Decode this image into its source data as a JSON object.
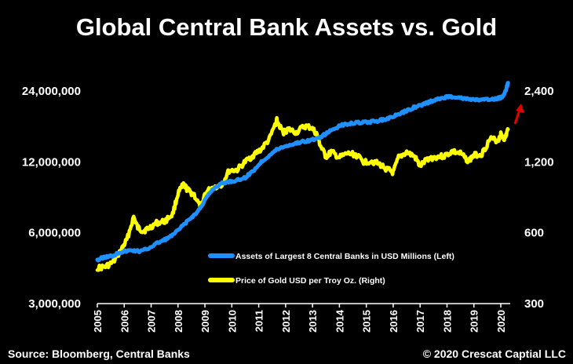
{
  "chart_data": {
    "type": "line",
    "title": "Global Central Bank Assets vs. Gold",
    "source": "Source: Bloomberg, Central Banks",
    "copyright": "© 2020 Crescat Captial LLC",
    "x_ticks": [
      "2005",
      "2006",
      "2007",
      "2008",
      "2009",
      "2010",
      "2011",
      "2012",
      "2013",
      "2014",
      "2015",
      "2016",
      "2017",
      "2018",
      "2019",
      "2020"
    ],
    "y_left": {
      "scale": "log",
      "ticks": [
        {
          "value": 3000000,
          "label": "3,000,000"
        },
        {
          "value": 6000000,
          "label": "6,000,000"
        },
        {
          "value": 12000000,
          "label": "12,000,000"
        },
        {
          "value": 24000000,
          "label": "24,000,000"
        }
      ],
      "range": [
        3000000,
        24000000
      ]
    },
    "y_right": {
      "scale": "log",
      "ticks": [
        {
          "value": 300,
          "label": "300"
        },
        {
          "value": 600,
          "label": "600"
        },
        {
          "value": 1200,
          "label": "1,200"
        },
        {
          "value": 2400,
          "label": "2,400"
        }
      ],
      "range": [
        300,
        2400
      ]
    },
    "x_range": [
      2005,
      2020.35
    ],
    "series": [
      {
        "name": "Assets of Largest 8 Central Banks in USD Millions (Left)",
        "color": "#1e90ff",
        "axis": "left",
        "x": [
          2005.0,
          2005.2,
          2005.4,
          2005.6,
          2005.8,
          2006.0,
          2006.3,
          2006.6,
          2006.9,
          2007.2,
          2007.5,
          2007.8,
          2008.1,
          2008.4,
          2008.7,
          2008.9,
          2009.1,
          2009.3,
          2009.6,
          2009.9,
          2010.2,
          2010.5,
          2010.8,
          2011.1,
          2011.4,
          2011.7,
          2012.0,
          2012.3,
          2012.6,
          2012.9,
          2013.2,
          2013.5,
          2013.8,
          2014.1,
          2014.4,
          2014.7,
          2015.0,
          2015.3,
          2015.6,
          2015.9,
          2016.2,
          2016.5,
          2016.8,
          2017.1,
          2017.4,
          2017.7,
          2018.0,
          2018.3,
          2018.6,
          2018.9,
          2019.2,
          2019.5,
          2019.8,
          2020.0,
          2020.1,
          2020.2,
          2020.27
        ],
        "values": [
          4600000,
          4700000,
          4750000,
          4800000,
          4950000,
          5000000,
          5050000,
          5000000,
          5150000,
          5400000,
          5600000,
          5850000,
          6300000,
          6800000,
          7300000,
          7900000,
          8600000,
          9200000,
          9700000,
          9900000,
          10000000,
          10300000,
          11000000,
          12000000,
          12800000,
          13600000,
          14000000,
          14300000,
          14600000,
          14800000,
          15100000,
          15800000,
          16600000,
          17200000,
          17500000,
          17600000,
          17700000,
          17800000,
          18100000,
          18500000,
          19100000,
          19800000,
          20500000,
          21000000,
          21700000,
          22200000,
          22700000,
          22700000,
          22300000,
          22100000,
          22000000,
          22000000,
          22200000,
          22500000,
          23000000,
          24500000,
          26000000
        ]
      },
      {
        "name": "Price of Gold USD per Troy Oz. (Right)",
        "color": "#ffff00",
        "axis": "right",
        "x": [
          2005.0,
          2005.3,
          2005.6,
          2005.9,
          2006.1,
          2006.35,
          2006.5,
          2006.7,
          2006.9,
          2007.2,
          2007.5,
          2007.8,
          2008.0,
          2008.2,
          2008.4,
          2008.6,
          2008.85,
          2009.0,
          2009.3,
          2009.6,
          2009.9,
          2010.2,
          2010.5,
          2010.8,
          2011.1,
          2011.4,
          2011.67,
          2011.9,
          2012.1,
          2012.4,
          2012.7,
          2012.95,
          2013.15,
          2013.3,
          2013.5,
          2013.7,
          2014.0,
          2014.3,
          2014.6,
          2014.9,
          2015.2,
          2015.5,
          2015.8,
          2016.0,
          2016.2,
          2016.5,
          2016.8,
          2017.0,
          2017.3,
          2017.6,
          2017.9,
          2018.2,
          2018.5,
          2018.8,
          2019.0,
          2019.3,
          2019.6,
          2019.9,
          2020.0,
          2020.15,
          2020.27
        ],
        "values": [
          425,
          430,
          450,
          510,
          560,
          700,
          630,
          610,
          625,
          660,
          670,
          720,
          880,
          960,
          900,
          870,
          760,
          880,
          940,
          950,
          1100,
          1110,
          1200,
          1280,
          1360,
          1500,
          1800,
          1600,
          1650,
          1600,
          1700,
          1680,
          1580,
          1400,
          1260,
          1320,
          1250,
          1300,
          1290,
          1200,
          1210,
          1170,
          1110,
          1080,
          1250,
          1320,
          1260,
          1150,
          1240,
          1260,
          1270,
          1330,
          1300,
          1210,
          1280,
          1300,
          1500,
          1480,
          1570,
          1500,
          1650
        ]
      }
    ],
    "annotation": {
      "type": "arrow",
      "color": "#e00000",
      "direction": "up"
    },
    "legend_position": "bottom-right",
    "grid": false
  }
}
